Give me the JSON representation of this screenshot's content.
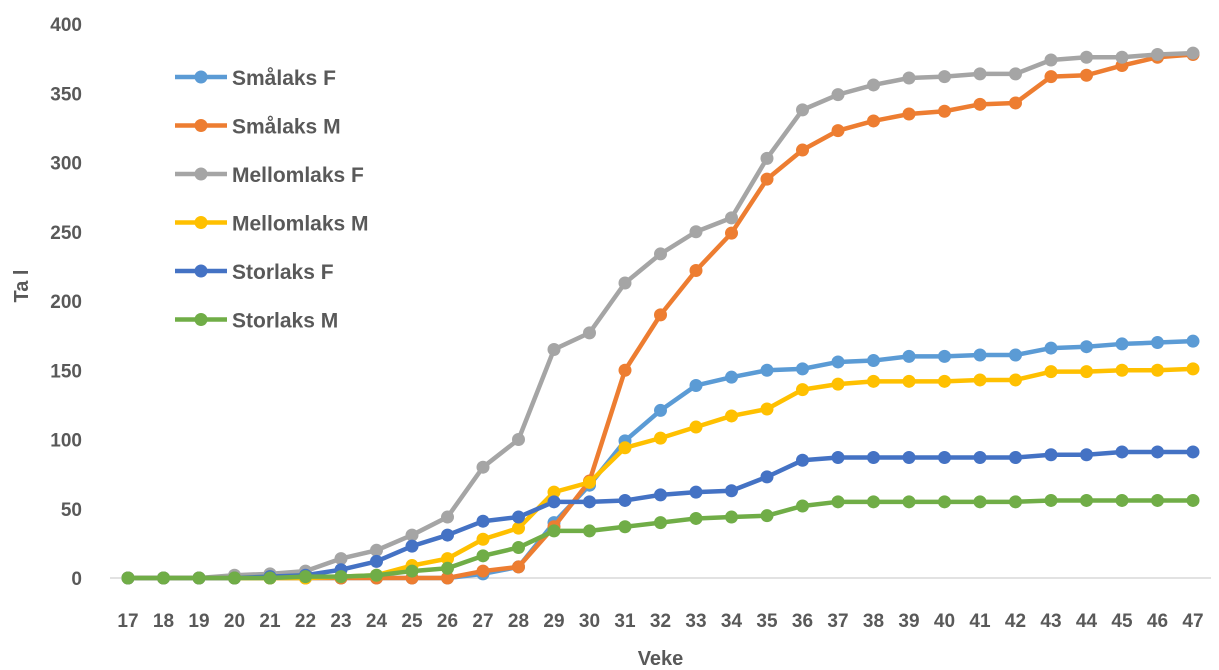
{
  "chart_data": {
    "type": "line",
    "title": "",
    "xlabel": "Veke",
    "ylabel": "Ta l",
    "ylim": [
      0,
      400
    ],
    "yticks": [
      0,
      50,
      100,
      150,
      200,
      250,
      300,
      350,
      400
    ],
    "categories": [
      "17",
      "18",
      "19",
      "20",
      "21",
      "22",
      "23",
      "24",
      "25",
      "26",
      "27",
      "28",
      "29",
      "30",
      "31",
      "32",
      "33",
      "34",
      "35",
      "36",
      "37",
      "38",
      "39",
      "40",
      "41",
      "42",
      "43",
      "44",
      "45",
      "46",
      "47"
    ],
    "grid": false,
    "legend_position": "top-left",
    "series": [
      {
        "name": "Smålaks F",
        "color": "#5b9bd5",
        "values": [
          0,
          0,
          0,
          0,
          0,
          0,
          0,
          0,
          0,
          0,
          3,
          8,
          40,
          67,
          99,
          121,
          139,
          145,
          150,
          151,
          156,
          157,
          160,
          160,
          161,
          161,
          166,
          167,
          169,
          170,
          171
        ]
      },
      {
        "name": "Smålaks M",
        "color": "#ed7d31",
        "values": [
          0,
          0,
          0,
          0,
          0,
          0,
          0,
          0,
          0,
          0,
          5,
          8,
          37,
          70,
          150,
          190,
          222,
          249,
          288,
          309,
          323,
          330,
          335,
          337,
          342,
          343,
          362,
          363,
          370,
          376,
          378
        ]
      },
      {
        "name": "Mellomlaks F",
        "color": "#a5a5a5",
        "values": [
          0,
          0,
          0,
          2,
          3,
          5,
          14,
          20,
          31,
          44,
          80,
          100,
          165,
          177,
          213,
          234,
          250,
          260,
          303,
          338,
          349,
          356,
          361,
          362,
          364,
          364,
          374,
          376,
          376,
          378,
          379
        ]
      },
      {
        "name": "Mellomlaks M",
        "color": "#ffc000",
        "values": [
          0,
          0,
          0,
          0,
          0,
          0,
          1,
          2,
          9,
          14,
          28,
          36,
          62,
          69,
          94,
          101,
          109,
          117,
          122,
          136,
          140,
          142,
          142,
          142,
          143,
          143,
          149,
          149,
          150,
          150,
          151
        ]
      },
      {
        "name": "Storlaks F",
        "color": "#4472c4",
        "values": [
          0,
          0,
          0,
          0,
          1,
          2,
          6,
          12,
          23,
          31,
          41,
          44,
          55,
          55,
          56,
          60,
          62,
          63,
          73,
          85,
          87,
          87,
          87,
          87,
          87,
          87,
          89,
          89,
          91,
          91,
          91
        ]
      },
      {
        "name": "Storlaks M",
        "color": "#70ad47",
        "values": [
          0,
          0,
          0,
          0,
          0,
          1,
          1,
          2,
          5,
          7,
          16,
          22,
          34,
          34,
          37,
          40,
          43,
          44,
          45,
          52,
          55,
          55,
          55,
          55,
          55,
          55,
          56,
          56,
          56,
          56,
          56
        ]
      }
    ]
  }
}
